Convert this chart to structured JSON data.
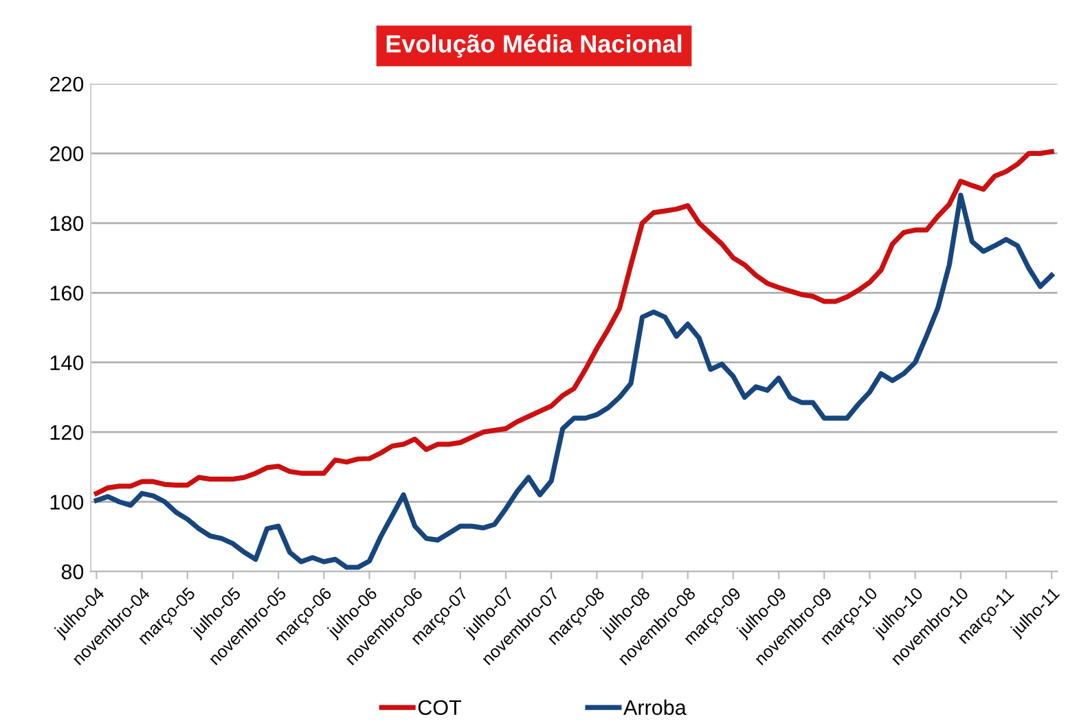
{
  "chart_data": {
    "type": "line",
    "title": "Evolução Média Nacional",
    "categories": [
      "julho-04",
      null,
      null,
      null,
      "novembro-04",
      null,
      null,
      null,
      "março-05",
      null,
      null,
      null,
      "julho-05",
      null,
      null,
      null,
      "novembro-05",
      null,
      null,
      null,
      "março-06",
      null,
      null,
      null,
      "julho-06",
      null,
      null,
      null,
      "novembro-06",
      null,
      null,
      null,
      "março-07",
      null,
      null,
      null,
      "julho-07",
      null,
      null,
      null,
      "novembro-07",
      null,
      null,
      null,
      "março-08",
      null,
      null,
      null,
      "julho-08",
      null,
      null,
      null,
      "novembro-08",
      null,
      null,
      null,
      "março-09",
      null,
      null,
      null,
      "julho-09",
      null,
      null,
      null,
      "novembro-09",
      null,
      null,
      null,
      "março-10",
      null,
      null,
      null,
      "julho-10",
      null,
      null,
      null,
      "novembro-10",
      null,
      null,
      null,
      "março-11",
      null,
      null,
      null,
      "julho-11"
    ],
    "series": [
      {
        "name": "COT",
        "color": "#cc1010",
        "values": [
          102.4,
          104,
          104.5,
          104.5,
          105.8,
          105.8,
          105,
          104.8,
          104.8,
          107,
          106.5,
          106.5,
          106.5,
          107,
          108.2,
          109.8,
          110.2,
          108.7,
          108.2,
          108.2,
          108.2,
          112,
          111.4,
          112.3,
          112.4,
          114,
          116,
          116.5,
          118,
          115,
          116.5,
          116.5,
          117,
          118.5,
          120,
          120.5,
          121,
          123,
          124.5,
          126,
          127.5,
          130.5,
          132.5,
          138,
          144,
          149.5,
          155.5,
          168,
          180,
          183,
          183.5,
          184,
          185,
          180,
          177,
          174,
          170,
          168,
          165,
          162.7,
          161.5,
          160.5,
          159.5,
          159,
          157.5,
          157.5,
          158.8,
          160.7,
          163,
          166.5,
          174,
          177.3,
          178,
          178,
          182,
          185.4,
          192,
          190.8,
          189.7,
          193.5,
          194.8,
          196.9,
          200,
          200,
          200.5
        ]
      },
      {
        "name": "Arroba",
        "color": "#17467e",
        "values": [
          100.4,
          101.5,
          100,
          99,
          102.4,
          101.7,
          100,
          97,
          95,
          92.3,
          90.2,
          89.5,
          88,
          85.5,
          83.5,
          92.3,
          93,
          85.5,
          82.8,
          84,
          82.8,
          83.5,
          81.2,
          81.2,
          83,
          90,
          96,
          102,
          93,
          89.5,
          89,
          91,
          93,
          93,
          92.5,
          93.5,
          98,
          103,
          107,
          102,
          106,
          121,
          124,
          124,
          125,
          127,
          130,
          134,
          153,
          154.5,
          153,
          147.5,
          151,
          147,
          138,
          139.5,
          136,
          130,
          133,
          132,
          135.5,
          130,
          128.5,
          128.5,
          124,
          124,
          124,
          128,
          131.5,
          136.8,
          134.8,
          136.8,
          140,
          147.6,
          155.7,
          168,
          188,
          174.7,
          171.9,
          173.5,
          175.3,
          173.5,
          167,
          161.8,
          165
        ]
      }
    ],
    "ylim": [
      80,
      220
    ],
    "yticks": [
      80,
      100,
      120,
      140,
      160,
      180,
      200,
      220
    ],
    "grid": "y",
    "legend": "bottom",
    "line_style": "solid",
    "marker": "none"
  }
}
